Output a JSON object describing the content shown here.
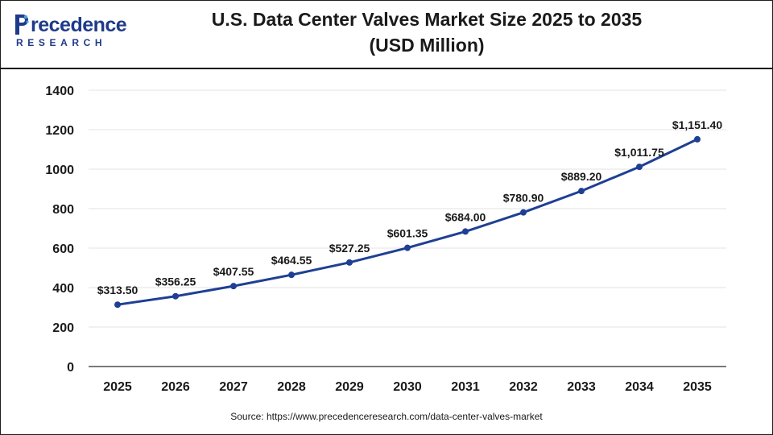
{
  "header": {
    "logo_word": "recedence",
    "logo_sub": "RESEARCH",
    "title_line1": "U.S. Data Center Valves Market Size 2025 to 2035",
    "title_line2": "(USD Million)"
  },
  "source": "Source: https://www.precedenceresearch.com/data-center-valves-market",
  "colors": {
    "line": "#1e3f94",
    "brand": "#1e3a8a",
    "grid": "#e3e3e3"
  },
  "chart_data": {
    "type": "line",
    "title": "U.S. Data Center Valves Market Size 2025 to 2035 (USD Million)",
    "xlabel": "",
    "ylabel": "",
    "categories": [
      "2025",
      "2026",
      "2027",
      "2028",
      "2029",
      "2030",
      "2031",
      "2032",
      "2033",
      "2034",
      "2035"
    ],
    "values": [
      313.5,
      356.25,
      407.55,
      464.55,
      527.25,
      601.35,
      684.0,
      780.9,
      889.2,
      1011.75,
      1151.4
    ],
    "data_labels": [
      "$313.50",
      "$356.25",
      "$407.55",
      "$464.55",
      "$527.25",
      "$601.35",
      "$684.00",
      "$780.90",
      "$889.20",
      "$1,011.75",
      "$1,151.40"
    ],
    "ylim": [
      0,
      1400
    ],
    "yticks": [
      0,
      200,
      400,
      600,
      800,
      1000,
      1200,
      1400
    ],
    "grid": true,
    "legend": "none"
  }
}
